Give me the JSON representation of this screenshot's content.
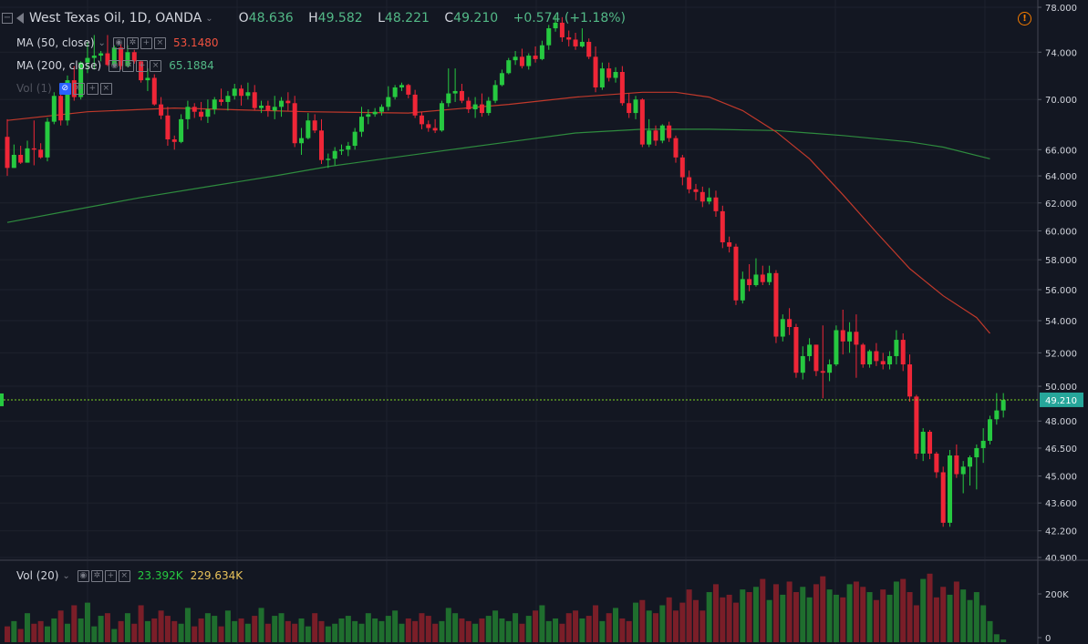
{
  "header": {
    "title": "West Texas Oil, 1D, OANDA",
    "open_label": "O",
    "open": "48.636",
    "high_label": "H",
    "high": "49.582",
    "low_label": "L",
    "low": "48.221",
    "close_label": "C",
    "close": "49.210",
    "change": "+0.574 (+1.18%)",
    "warning_icon": "!"
  },
  "indicators": {
    "ma50": {
      "label": "MA (50, close)",
      "value": "53.1480",
      "color": "#f0513f"
    },
    "ma200": {
      "label": "MA (200, close)",
      "value": "65.1884",
      "color": "#53b987"
    },
    "vol_overlay": {
      "label": "Vol (1)"
    },
    "vol_pane": {
      "label": "Vol (20)",
      "value1": "23.392K",
      "value2": "229.634K"
    }
  },
  "icons": [
    "collapse-icon",
    "symbol-icon",
    "chevron-down-icon",
    "eye-icon",
    "settings-icon",
    "plus-icon",
    "close-icon",
    "warning-icon"
  ],
  "colors": {
    "up": "#26c940",
    "down": "#ef2637",
    "background": "#131722",
    "price_line": "#7ed321"
  },
  "chart_data": {
    "type": "candlestick",
    "title": "West Texas Oil, 1D, OANDA",
    "price_axis_ticks": [
      "78.000",
      "74.000",
      "70.000",
      "66.000",
      "64.000",
      "62.000",
      "60.000",
      "58.000",
      "56.000",
      "54.000",
      "52.000",
      "50.000",
      "48.000",
      "46.500",
      "45.000",
      "43.600",
      "42.200",
      "40.900"
    ],
    "current_price_label": "49.210",
    "volume_axis_ticks": [
      "200K",
      "0"
    ],
    "ylim": [
      40.9,
      78.0
    ],
    "log_scale": true,
    "grid": true,
    "candles": [
      [
        67,
        68.4,
        64,
        64.6
      ],
      [
        64.6,
        66.4,
        64.6,
        65.6
      ],
      [
        65.6,
        66.3,
        64.9,
        65.0
      ],
      [
        65.0,
        66.7,
        65.0,
        66.1
      ],
      [
        66.1,
        68.3,
        64.8,
        66.0
      ],
      [
        66.0,
        66.5,
        65.3,
        65.4
      ],
      [
        65.4,
        68.5,
        65.1,
        68.2
      ],
      [
        68.2,
        70.6,
        68.0,
        70.3
      ],
      [
        70.3,
        70.9,
        67.9,
        68.3
      ],
      [
        68.3,
        72.0,
        67.9,
        71.6
      ],
      [
        71.6,
        72.8,
        69.9,
        70.2
      ],
      [
        70.2,
        73.2,
        70.0,
        73.1
      ],
      [
        73.1,
        74.9,
        72.2,
        73.5
      ],
      [
        73.5,
        75.5,
        72.5,
        73.7
      ],
      [
        73.7,
        74.1,
        73.2,
        73.9
      ],
      [
        73.9,
        75.5,
        72.8,
        72.9
      ],
      [
        72.9,
        74.6,
        72.7,
        74.4
      ],
      [
        74.4,
        74.7,
        72.5,
        72.8
      ],
      [
        72.8,
        74.6,
        72.7,
        74.0
      ],
      [
        74.0,
        74.2,
        73.0,
        73.2
      ],
      [
        73.2,
        73.3,
        71.4,
        71.6
      ],
      [
        71.6,
        72.6,
        70.7,
        71.8
      ],
      [
        71.8,
        72.1,
        69.5,
        69.6
      ],
      [
        69.6,
        70.2,
        68.4,
        68.7
      ],
      [
        68.7,
        69.4,
        66.3,
        66.8
      ],
      [
        66.8,
        67.1,
        66.0,
        66.6
      ],
      [
        66.6,
        68.8,
        66.5,
        68.4
      ],
      [
        68.4,
        69.9,
        67.6,
        69.4
      ],
      [
        69.4,
        69.7,
        68.5,
        69.0
      ],
      [
        69.0,
        69.8,
        68.3,
        68.6
      ],
      [
        68.6,
        70.0,
        68.1,
        69.2
      ],
      [
        69.2,
        70.2,
        68.8,
        70.0
      ],
      [
        70.0,
        70.9,
        69.5,
        69.8
      ],
      [
        69.8,
        70.7,
        69.1,
        70.3
      ],
      [
        70.3,
        71.3,
        70.0,
        70.9
      ],
      [
        70.9,
        71.2,
        69.5,
        70.3
      ],
      [
        70.3,
        71.4,
        70.0,
        70.6
      ],
      [
        70.6,
        71.2,
        69.1,
        69.3
      ],
      [
        69.3,
        69.9,
        68.9,
        69.5
      ],
      [
        69.5,
        69.9,
        68.6,
        69.1
      ],
      [
        69.1,
        70.3,
        68.4,
        69.4
      ],
      [
        69.4,
        70.2,
        68.6,
        69.9
      ],
      [
        69.9,
        70.6,
        69.1,
        69.7
      ],
      [
        69.7,
        70.3,
        66.2,
        66.5
      ],
      [
        66.5,
        67.7,
        65.6,
        66.9
      ],
      [
        66.9,
        68.9,
        66.8,
        68.3
      ],
      [
        68.3,
        68.8,
        67.3,
        67.5
      ],
      [
        67.5,
        68.4,
        64.9,
        65.2
      ],
      [
        65.2,
        65.7,
        64.6,
        65.3
      ],
      [
        65.3,
        66.2,
        64.8,
        65.9
      ],
      [
        65.9,
        66.4,
        65.6,
        66.0
      ],
      [
        66.0,
        66.6,
        65.5,
        66.3
      ],
      [
        66.3,
        67.7,
        66.0,
        67.4
      ],
      [
        67.4,
        69.4,
        67.0,
        68.6
      ],
      [
        68.6,
        69.2,
        68.0,
        68.8
      ],
      [
        68.8,
        69.3,
        68.6,
        69.0
      ],
      [
        69.0,
        69.6,
        68.7,
        69.4
      ],
      [
        69.4,
        71.1,
        69.1,
        70.2
      ],
      [
        70.2,
        71.2,
        70.0,
        71.0
      ],
      [
        71.0,
        71.4,
        70.7,
        71.2
      ],
      [
        71.2,
        71.3,
        70.1,
        70.4
      ],
      [
        70.4,
        70.8,
        68.5,
        68.7
      ],
      [
        68.7,
        69.0,
        67.6,
        68.0
      ],
      [
        68.0,
        68.3,
        67.4,
        67.7
      ],
      [
        67.7,
        68.4,
        67.3,
        67.5
      ],
      [
        67.5,
        69.9,
        67.4,
        69.7
      ],
      [
        69.7,
        72.6,
        69.4,
        70.5
      ],
      [
        70.5,
        72.6,
        69.8,
        70.7
      ],
      [
        70.7,
        71.3,
        69.7,
        69.9
      ],
      [
        69.9,
        70.2,
        68.9,
        69.2
      ],
      [
        69.2,
        70.2,
        68.5,
        69.6
      ],
      [
        69.6,
        70.5,
        68.6,
        68.9
      ],
      [
        68.9,
        70.2,
        68.7,
        69.9
      ],
      [
        69.9,
        71.6,
        69.7,
        71.2
      ],
      [
        71.2,
        72.5,
        71.1,
        72.2
      ],
      [
        72.2,
        73.5,
        72.1,
        73.3
      ],
      [
        73.3,
        74.1,
        72.9,
        73.6
      ],
      [
        73.6,
        74.3,
        72.6,
        72.8
      ],
      [
        72.8,
        73.9,
        72.5,
        73.7
      ],
      [
        73.7,
        74.5,
        73.1,
        73.4
      ],
      [
        73.4,
        75.0,
        73.3,
        74.6
      ],
      [
        74.6,
        76.4,
        74.2,
        76.1
      ],
      [
        76.1,
        77.3,
        75.8,
        76.6
      ],
      [
        76.6,
        77.1,
        74.9,
        75.3
      ],
      [
        75.3,
        75.9,
        74.5,
        75.1
      ],
      [
        75.1,
        75.7,
        74.2,
        74.5
      ],
      [
        74.5,
        76.1,
        74.4,
        74.9
      ],
      [
        74.9,
        75.2,
        73.4,
        73.6
      ],
      [
        73.6,
        74.5,
        70.6,
        71.0
      ],
      [
        71.0,
        73.1,
        70.8,
        72.6
      ],
      [
        72.6,
        73.1,
        71.5,
        71.8
      ],
      [
        71.8,
        72.7,
        71.4,
        72.3
      ],
      [
        72.3,
        72.8,
        69.5,
        69.7
      ],
      [
        69.7,
        70.5,
        68.5,
        68.9
      ],
      [
        68.9,
        70.3,
        68.4,
        70.0
      ],
      [
        70.0,
        70.1,
        66.2,
        66.4
      ],
      [
        66.4,
        68.4,
        66.2,
        67.5
      ],
      [
        67.5,
        67.9,
        66.3,
        66.7
      ],
      [
        66.7,
        68.0,
        66.5,
        67.9
      ],
      [
        67.9,
        68.2,
        66.6,
        66.9
      ],
      [
        66.9,
        67.1,
        65.0,
        65.4
      ],
      [
        65.4,
        65.6,
        63.3,
        63.9
      ],
      [
        63.9,
        64.4,
        62.7,
        63.0
      ],
      [
        63.0,
        63.4,
        62.2,
        62.8
      ],
      [
        62.8,
        63.2,
        61.7,
        62.1
      ],
      [
        62.1,
        63.1,
        61.9,
        62.4
      ],
      [
        62.4,
        62.9,
        61.0,
        61.4
      ],
      [
        61.4,
        61.8,
        58.8,
        59.2
      ],
      [
        59.2,
        59.6,
        58.5,
        58.9
      ],
      [
        58.9,
        59.1,
        55.0,
        55.3
      ],
      [
        55.3,
        57.2,
        55.1,
        56.7
      ],
      [
        56.7,
        57.7,
        55.9,
        56.3
      ],
      [
        56.3,
        58.1,
        56.2,
        57.0
      ],
      [
        57.0,
        57.6,
        56.3,
        56.5
      ],
      [
        56.5,
        57.6,
        56.3,
        57.1
      ],
      [
        57.1,
        57.3,
        52.6,
        53.0
      ],
      [
        53.0,
        54.4,
        52.7,
        54.1
      ],
      [
        54.1,
        54.8,
        53.1,
        53.6
      ],
      [
        53.6,
        53.8,
        50.5,
        50.8
      ],
      [
        50.8,
        52.4,
        50.4,
        51.8
      ],
      [
        51.8,
        52.9,
        51.5,
        52.5
      ],
      [
        52.5,
        52.5,
        50.6,
        50.9
      ],
      [
        50.9,
        53.7,
        49.3,
        50.8
      ],
      [
        50.8,
        51.6,
        50.3,
        51.3
      ],
      [
        51.3,
        53.7,
        51.2,
        53.4
      ],
      [
        53.4,
        54.7,
        51.9,
        52.7
      ],
      [
        52.7,
        53.9,
        52.0,
        53.3
      ],
      [
        53.3,
        54.4,
        50.5,
        52.5
      ],
      [
        52.5,
        52.6,
        51.1,
        51.3
      ],
      [
        51.3,
        52.2,
        51.1,
        52.1
      ],
      [
        52.1,
        52.6,
        51.2,
        51.5
      ],
      [
        51.5,
        52.0,
        51.0,
        51.3
      ],
      [
        51.3,
        52.1,
        51.0,
        51.8
      ],
      [
        51.8,
        53.4,
        51.3,
        52.8
      ],
      [
        52.8,
        53.2,
        50.9,
        51.3
      ],
      [
        51.3,
        51.9,
        49.1,
        49.4
      ],
      [
        49.4,
        49.5,
        45.9,
        46.2
      ],
      [
        46.2,
        47.6,
        45.8,
        47.4
      ],
      [
        47.4,
        47.5,
        45.9,
        46.2
      ],
      [
        46.2,
        46.3,
        44.9,
        45.2
      ],
      [
        45.2,
        45.5,
        42.4,
        42.6
      ],
      [
        42.6,
        46.4,
        42.4,
        46.1
      ],
      [
        46.1,
        46.7,
        44.9,
        45.1
      ],
      [
        45.1,
        45.8,
        44.1,
        45.5
      ],
      [
        45.5,
        46.1,
        44.5,
        46.0
      ],
      [
        46.0,
        46.7,
        44.3,
        46.5
      ],
      [
        46.5,
        47.6,
        45.7,
        46.9
      ],
      [
        46.9,
        48.3,
        46.7,
        48.1
      ],
      [
        48.1,
        49.6,
        47.8,
        48.6
      ],
      [
        48.6,
        49.6,
        48.2,
        49.2
      ]
    ],
    "volume_max": 200000,
    "volumes": [
      30,
      40,
      25,
      55,
      35,
      40,
      30,
      45,
      60,
      35,
      70,
      45,
      75,
      30,
      50,
      55,
      25,
      40,
      55,
      35,
      70,
      40,
      45,
      60,
      50,
      40,
      35,
      65,
      30,
      45,
      55,
      50,
      30,
      60,
      40,
      45,
      35,
      50,
      65,
      35,
      50,
      55,
      40,
      35,
      45,
      30,
      55,
      40,
      30,
      35,
      45,
      50,
      40,
      35,
      55,
      45,
      40,
      50,
      60,
      35,
      45,
      40,
      55,
      50,
      35,
      40,
      65,
      55,
      45,
      40,
      35,
      45,
      50,
      60,
      45,
      40,
      55,
      35,
      50,
      60,
      70,
      40,
      45,
      35,
      55,
      60,
      45,
      50,
      70,
      40,
      55,
      65,
      45,
      40,
      75,
      80,
      60,
      55,
      70,
      85,
      60,
      75,
      100,
      80,
      60,
      95,
      110,
      85,
      90,
      75,
      100,
      95,
      105,
      120,
      80,
      110,
      90,
      115,
      95,
      105,
      85,
      110,
      125,
      100,
      90,
      85,
      110,
      115,
      105,
      95,
      80,
      100,
      90,
      115,
      120,
      95,
      70,
      120,
      130,
      85,
      105,
      90,
      115,
      100,
      80,
      95,
      70,
      40,
      15,
      5
    ],
    "ma50": [
      [
        0,
        68.3
      ],
      [
        12,
        69.0
      ],
      [
        25,
        69.3
      ],
      [
        45,
        69.0
      ],
      [
        60,
        68.9
      ],
      [
        75,
        69.6
      ],
      [
        85,
        70.2
      ],
      [
        95,
        70.6
      ],
      [
        100,
        70.6
      ],
      [
        105,
        70.2
      ],
      [
        110,
        69.1
      ],
      [
        115,
        67.4
      ],
      [
        120,
        65.3
      ],
      [
        125,
        62.6
      ],
      [
        130,
        59.9
      ],
      [
        135,
        57.4
      ],
      [
        140,
        55.6
      ],
      [
        145,
        54.2
      ],
      [
        147,
        53.2
      ]
    ],
    "ma200": [
      [
        0,
        60.6
      ],
      [
        10,
        61.5
      ],
      [
        20,
        62.4
      ],
      [
        30,
        63.2
      ],
      [
        40,
        64.0
      ],
      [
        48,
        64.7
      ],
      [
        55,
        65.2
      ],
      [
        65,
        65.9
      ],
      [
        75,
        66.6
      ],
      [
        85,
        67.3
      ],
      [
        95,
        67.6
      ],
      [
        105,
        67.6
      ],
      [
        115,
        67.5
      ],
      [
        125,
        67.1
      ],
      [
        135,
        66.6
      ],
      [
        140,
        66.2
      ],
      [
        147,
        65.3
      ]
    ]
  }
}
